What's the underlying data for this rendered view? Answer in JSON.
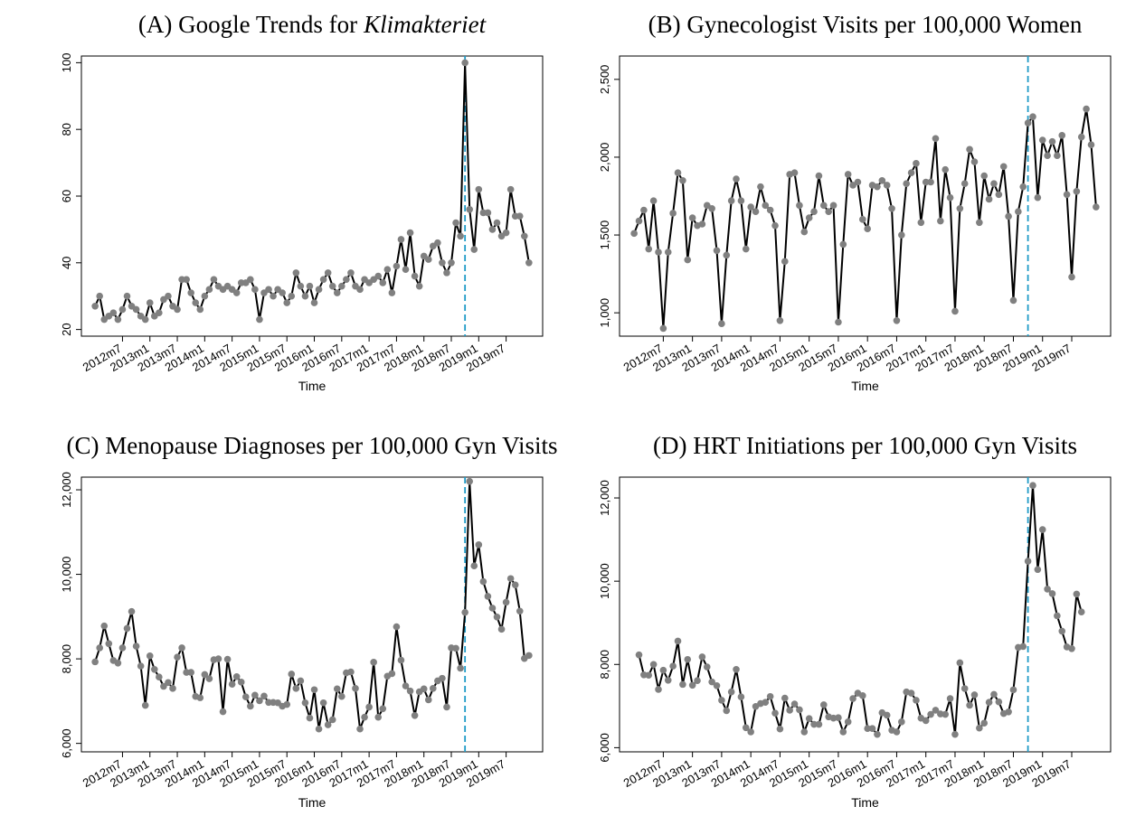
{
  "chart_data": [
    {
      "type": "line",
      "title": "(A) Google Trends for",
      "title_italic": "Klimakteriet",
      "xlabel": "Time",
      "x": [
        624,
        625,
        626,
        627,
        628,
        629,
        630,
        631,
        632,
        633,
        634,
        635,
        636,
        637,
        638,
        639,
        640,
        641,
        642,
        643,
        644,
        645,
        646,
        647,
        648,
        649,
        650,
        651,
        652,
        653,
        654,
        655,
        656,
        657,
        658,
        659,
        660,
        661,
        662,
        663,
        664,
        665,
        666,
        667,
        668,
        669,
        670,
        671,
        672,
        673,
        674,
        675,
        676,
        677,
        678,
        679,
        680,
        681,
        682,
        683,
        684,
        685,
        686,
        687,
        688,
        689,
        690,
        691,
        692,
        693,
        694,
        695,
        696,
        697,
        698,
        699,
        700,
        701,
        702,
        703,
        704,
        705,
        706,
        707,
        708,
        709,
        710,
        711,
        712,
        713,
        714,
        715,
        716,
        717,
        718,
        719
      ],
      "values": [
        27,
        30,
        23,
        24,
        25,
        23,
        26,
        30,
        27,
        26,
        24,
        23,
        28,
        24,
        25,
        29,
        30,
        27,
        26,
        35,
        35,
        31,
        28,
        26,
        30,
        32,
        35,
        33,
        32,
        33,
        32,
        31,
        34,
        34,
        35,
        32,
        23,
        31,
        32,
        30,
        32,
        31,
        28,
        30,
        37,
        33,
        30,
        33,
        28,
        32,
        35,
        37,
        33,
        31,
        33,
        35,
        37,
        33,
        32,
        35,
        34,
        35,
        36,
        34,
        38,
        31,
        39,
        47,
        38,
        49,
        36,
        33,
        42,
        41,
        45,
        46,
        40,
        37,
        40,
        52,
        48,
        100,
        56,
        44,
        62,
        55,
        55,
        50,
        52,
        48,
        49,
        62,
        54,
        54,
        48,
        40
      ],
      "color": "#000000",
      "marker_color": "#808080",
      "vline": 705,
      "vline_color": "#1f9bc7",
      "xlim": [
        621,
        722
      ],
      "ylim": [
        18,
        102
      ],
      "yticks": [
        20,
        40,
        60,
        80,
        100
      ],
      "xticks": [
        {
          "value": 630,
          "label": "2012m7"
        },
        {
          "value": 636,
          "label": "2013m1"
        },
        {
          "value": 642,
          "label": "2013m7"
        },
        {
          "value": 648,
          "label": "2014m1"
        },
        {
          "value": 654,
          "label": "2014m7"
        },
        {
          "value": 660,
          "label": "2015m1"
        },
        {
          "value": 666,
          "label": "2015m7"
        },
        {
          "value": 672,
          "label": "2016m1"
        },
        {
          "value": 678,
          "label": "2016m7"
        },
        {
          "value": 684,
          "label": "2017m1"
        },
        {
          "value": 690,
          "label": "2017m7"
        },
        {
          "value": 696,
          "label": "2018m1"
        },
        {
          "value": 702,
          "label": "2018m7"
        },
        {
          "value": 708,
          "label": "2019m1"
        },
        {
          "value": 714,
          "label": "2019m7"
        }
      ]
    },
    {
      "type": "line",
      "title": "(B) Gynecologist Visits per 100,000 Women",
      "xlabel": "Time",
      "x": [
        624,
        625,
        626,
        627,
        628,
        629,
        630,
        631,
        632,
        633,
        634,
        635,
        636,
        637,
        638,
        639,
        640,
        641,
        642,
        643,
        644,
        645,
        646,
        647,
        648,
        649,
        650,
        651,
        652,
        653,
        654,
        655,
        656,
        657,
        658,
        659,
        660,
        661,
        662,
        663,
        664,
        665,
        666,
        667,
        668,
        669,
        670,
        671,
        672,
        673,
        674,
        675,
        676,
        677,
        678,
        679,
        680,
        681,
        682,
        683,
        684,
        685,
        686,
        687,
        688,
        689,
        690,
        691,
        692,
        693,
        694,
        695,
        696,
        697,
        698,
        699,
        700,
        701,
        702,
        703,
        704,
        705,
        706,
        707,
        708,
        709,
        710,
        711,
        712,
        713,
        714,
        715,
        716,
        717,
        718,
        719
      ],
      "values": [
        1510,
        1590,
        1660,
        1410,
        1720,
        1390,
        900,
        1390,
        1640,
        1900,
        1850,
        1340,
        1610,
        1560,
        1570,
        1690,
        1670,
        1400,
        930,
        1370,
        1720,
        1860,
        1720,
        1410,
        1680,
        1650,
        1810,
        1690,
        1660,
        1560,
        950,
        1330,
        1890,
        1900,
        1690,
        1520,
        1610,
        1650,
        1880,
        1690,
        1650,
        1690,
        940,
        1440,
        1890,
        1820,
        1840,
        1600,
        1540,
        1820,
        1810,
        1850,
        1820,
        1670,
        950,
        1500,
        1830,
        1900,
        1960,
        1580,
        1840,
        1840,
        2120,
        1590,
        1920,
        1740,
        1010,
        1670,
        1830,
        2050,
        1970,
        1580,
        1880,
        1730,
        1830,
        1760,
        1940,
        1620,
        1080,
        1650,
        1810,
        2220,
        2260,
        1740,
        2110,
        2010,
        2100,
        2010,
        2140,
        1760,
        1230,
        1780,
        2130,
        2310,
        2080,
        1680
      ],
      "color": "#000000",
      "marker_color": "#808080",
      "vline": 705,
      "vline_color": "#1f9bc7",
      "xlim": [
        621,
        722
      ],
      "ylim": [
        850,
        2650
      ],
      "yticks": [
        {
          "value": 1000,
          "label": "1,000"
        },
        {
          "value": 1500,
          "label": "1,500"
        },
        {
          "value": 2000,
          "label": "2,000"
        },
        {
          "value": 2500,
          "label": "2,500"
        }
      ],
      "xticks": [
        {
          "value": 630,
          "label": "2012m7"
        },
        {
          "value": 636,
          "label": "2013m1"
        },
        {
          "value": 642,
          "label": "2013m7"
        },
        {
          "value": 648,
          "label": "2014m1"
        },
        {
          "value": 654,
          "label": "2014m7"
        },
        {
          "value": 660,
          "label": "2015m1"
        },
        {
          "value": 666,
          "label": "2015m7"
        },
        {
          "value": 672,
          "label": "2016m1"
        },
        {
          "value": 678,
          "label": "2016m7"
        },
        {
          "value": 684,
          "label": "2017m1"
        },
        {
          "value": 690,
          "label": "2017m7"
        },
        {
          "value": 696,
          "label": "2018m1"
        },
        {
          "value": 702,
          "label": "2018m7"
        },
        {
          "value": 708,
          "label": "2019m1"
        },
        {
          "value": 714,
          "label": "2019m7"
        }
      ]
    },
    {
      "type": "line",
      "title": "(C) Menopause Diagnoses per 100,000 Gyn Visits",
      "xlabel": "Time",
      "x": [
        624,
        625,
        626,
        627,
        628,
        629,
        630,
        631,
        632,
        633,
        634,
        635,
        636,
        637,
        638,
        639,
        640,
        641,
        642,
        643,
        644,
        645,
        646,
        647,
        648,
        649,
        650,
        651,
        652,
        653,
        654,
        655,
        656,
        657,
        658,
        659,
        660,
        661,
        662,
        663,
        664,
        665,
        666,
        667,
        668,
        669,
        670,
        671,
        672,
        673,
        674,
        675,
        676,
        677,
        678,
        679,
        680,
        681,
        682,
        683,
        684,
        685,
        686,
        687,
        688,
        689,
        690,
        691,
        692,
        693,
        694,
        695,
        696,
        697,
        698,
        699,
        700,
        701,
        702,
        703,
        704,
        705,
        706,
        707,
        708,
        709,
        710,
        711,
        712,
        713,
        714,
        715,
        716,
        717,
        718,
        719
      ],
      "values": [
        7930,
        8260,
        8780,
        8360,
        7960,
        7900,
        8260,
        8720,
        9120,
        8300,
        7830,
        6900,
        8070,
        7750,
        7570,
        7350,
        7440,
        7300,
        8040,
        8260,
        7680,
        7680,
        7110,
        7080,
        7630,
        7530,
        7980,
        8000,
        6750,
        7990,
        7400,
        7580,
        7450,
        7100,
        6880,
        7140,
        7010,
        7120,
        6970,
        6970,
        6960,
        6880,
        6920,
        7640,
        7300,
        7480,
        6960,
        6600,
        7270,
        6340,
        6960,
        6440,
        6560,
        7290,
        7110,
        7670,
        7690,
        7300,
        6340,
        6620,
        6860,
        7920,
        6620,
        6820,
        7590,
        7650,
        8760,
        7970,
        7360,
        7240,
        6660,
        7220,
        7290,
        7030,
        7300,
        7480,
        7540,
        6860,
        8260,
        8250,
        7780,
        9100,
        12200,
        10200,
        10700,
        9830,
        9480,
        9200,
        8990,
        8700,
        9340,
        9900,
        9750,
        9130,
        8010,
        8080
      ],
      "color": "#000000",
      "marker_color": "#808080",
      "vline": 705,
      "vline_color": "#1f9bc7",
      "xlim": [
        621,
        722
      ],
      "ylim": [
        5800,
        12300
      ],
      "yticks": [
        {
          "value": 6000,
          "label": "6,000"
        },
        {
          "value": 8000,
          "label": "8,000"
        },
        {
          "value": 10000,
          "label": "10,000"
        },
        {
          "value": 12000,
          "label": "12,000"
        }
      ],
      "xticks": [
        {
          "value": 630,
          "label": "2012m7"
        },
        {
          "value": 636,
          "label": "2013m1"
        },
        {
          "value": 642,
          "label": "2013m7"
        },
        {
          "value": 648,
          "label": "2014m1"
        },
        {
          "value": 654,
          "label": "2014m7"
        },
        {
          "value": 660,
          "label": "2015m1"
        },
        {
          "value": 666,
          "label": "2015m7"
        },
        {
          "value": 672,
          "label": "2016m1"
        },
        {
          "value": 678,
          "label": "2016m7"
        },
        {
          "value": 684,
          "label": "2017m1"
        },
        {
          "value": 690,
          "label": "2017m7"
        },
        {
          "value": 696,
          "label": "2018m1"
        },
        {
          "value": 702,
          "label": "2018m7"
        },
        {
          "value": 708,
          "label": "2019m1"
        },
        {
          "value": 714,
          "label": "2019m7"
        }
      ]
    },
    {
      "type": "line",
      "title": "(D) HRT Initiations per 100,000 Gyn Visits",
      "xlabel": "Time",
      "x": [
        625,
        626,
        627,
        628,
        629,
        630,
        631,
        632,
        633,
        634,
        635,
        636,
        637,
        638,
        639,
        640,
        641,
        642,
        643,
        644,
        645,
        646,
        647,
        648,
        649,
        650,
        651,
        652,
        653,
        654,
        655,
        656,
        657,
        658,
        659,
        660,
        661,
        662,
        663,
        664,
        665,
        666,
        667,
        668,
        669,
        670,
        671,
        672,
        673,
        674,
        675,
        676,
        677,
        678,
        679,
        680,
        681,
        682,
        683,
        684,
        685,
        686,
        687,
        688,
        689,
        690,
        691,
        692,
        693,
        694,
        695,
        696,
        697,
        698,
        699,
        700,
        701,
        702,
        703,
        704,
        705,
        706,
        707,
        708,
        709,
        710,
        711,
        712,
        713,
        714,
        715,
        716
      ],
      "values": [
        8230,
        7750,
        7740,
        8000,
        7400,
        7860,
        7620,
        7960,
        8560,
        7520,
        8120,
        7500,
        7610,
        8180,
        7940,
        7580,
        7490,
        7140,
        6890,
        7340,
        7880,
        7220,
        6480,
        6380,
        6990,
        7060,
        7090,
        7230,
        6830,
        6450,
        7190,
        6900,
        7050,
        6910,
        6380,
        6700,
        6560,
        6560,
        7030,
        6740,
        6710,
        6720,
        6380,
        6620,
        7180,
        7310,
        7250,
        6460,
        6460,
        6320,
        6840,
        6780,
        6420,
        6380,
        6620,
        7340,
        7310,
        7140,
        6710,
        6650,
        6800,
        6900,
        6810,
        6800,
        7180,
        6320,
        8040,
        7420,
        7020,
        7270,
        6470,
        6590,
        7090,
        7280,
        7100,
        6820,
        6860,
        7390,
        8410,
        8430,
        10480,
        12300,
        10280,
        11240,
        9810,
        9700,
        9170,
        8800,
        8420,
        8380,
        9690,
        9260
      ],
      "color": "#000000",
      "marker_color": "#808080",
      "vline": 705,
      "vline_color": "#1f9bc7",
      "xlim": [
        621,
        722
      ],
      "ylim": [
        5900,
        12500
      ],
      "yticks": [
        {
          "value": 6000,
          "label": "6,000"
        },
        {
          "value": 8000,
          "label": "8,000"
        },
        {
          "value": 10000,
          "label": "10,000"
        },
        {
          "value": 12000,
          "label": "12,000"
        }
      ],
      "xticks": [
        {
          "value": 630,
          "label": "2012m7"
        },
        {
          "value": 636,
          "label": "2013m1"
        },
        {
          "value": 642,
          "label": "2013m7"
        },
        {
          "value": 648,
          "label": "2014m1"
        },
        {
          "value": 654,
          "label": "2014m7"
        },
        {
          "value": 660,
          "label": "2015m1"
        },
        {
          "value": 666,
          "label": "2015m7"
        },
        {
          "value": 672,
          "label": "2016m1"
        },
        {
          "value": 678,
          "label": "2016m7"
        },
        {
          "value": 684,
          "label": "2017m1"
        },
        {
          "value": 690,
          "label": "2017m7"
        },
        {
          "value": 696,
          "label": "2018m1"
        },
        {
          "value": 702,
          "label": "2018m7"
        },
        {
          "value": 708,
          "label": "2019m1"
        },
        {
          "value": 714,
          "label": "2019m7"
        }
      ]
    }
  ]
}
